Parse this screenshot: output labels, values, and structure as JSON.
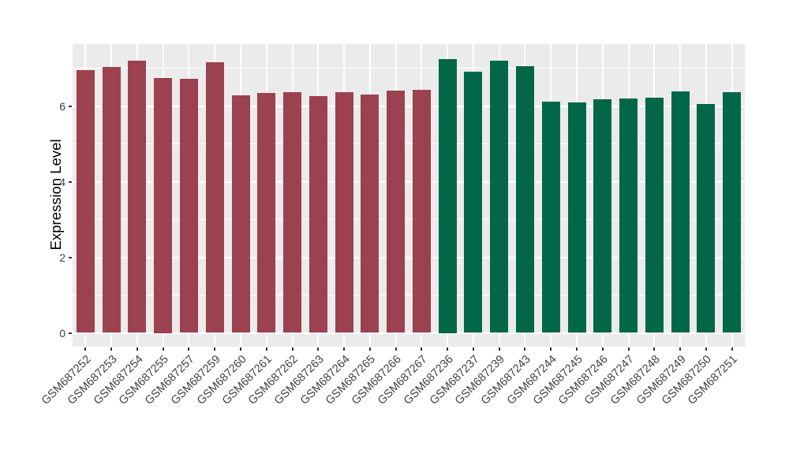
{
  "chart_data": {
    "type": "bar",
    "title": "",
    "xlabel": "",
    "ylabel": "Expression Level",
    "categories": [
      "GSM687252",
      "GSM687253",
      "GSM687254",
      "GSM687255",
      "GSM687257",
      "GSM687259",
      "GSM687260",
      "GSM687261",
      "GSM687262",
      "GSM687263",
      "GSM687264",
      "GSM687265",
      "GSM687266",
      "GSM687267",
      "GSM687236",
      "GSM687237",
      "GSM687239",
      "GSM687243",
      "GSM687244",
      "GSM687245",
      "GSM687246",
      "GSM687247",
      "GSM687248",
      "GSM687249",
      "GSM687250",
      "GSM687251"
    ],
    "values": [
      6.95,
      7.03,
      7.19,
      6.75,
      6.72,
      7.16,
      6.29,
      6.35,
      6.37,
      6.26,
      6.36,
      6.3,
      6.4,
      6.43,
      7.25,
      6.9,
      7.19,
      7.06,
      6.12,
      6.09,
      6.17,
      6.19,
      6.22,
      6.39,
      6.06,
      6.37
    ],
    "groups": [
      "group1",
      "group1",
      "group1",
      "group1",
      "group1",
      "group1",
      "group1",
      "group1",
      "group1",
      "group1",
      "group1",
      "group1",
      "group1",
      "group1",
      "group2",
      "group2",
      "group2",
      "group2",
      "group2",
      "group2",
      "group2",
      "group2",
      "group2",
      "group2",
      "group2",
      "group2"
    ],
    "group_colors": {
      "group1": "#9B4150",
      "group2": "#016748"
    },
    "yticks": [
      0,
      2,
      4,
      6
    ],
    "y_minor_gridlines": [
      1,
      3,
      5,
      7
    ],
    "ylim": [
      0,
      7.6
    ],
    "grid": "on",
    "panel_background": "#EBEBEB",
    "gridline_color": "#FFFFFF",
    "tick_label_color": "#404040",
    "axis_title_color": "#000000",
    "x_tick_label_angle": 45
  }
}
